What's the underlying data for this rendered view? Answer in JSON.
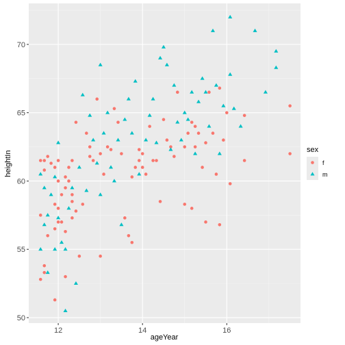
{
  "chart_data": {
    "type": "scatter",
    "xlabel": "ageYear",
    "ylabel": "heightIn",
    "xlim": [
      11.3,
      17.75
    ],
    "ylim": [
      49.6,
      73.0
    ],
    "x_ticks": [
      12,
      14,
      16
    ],
    "x_tick_labels": [
      "12",
      "14",
      "16"
    ],
    "y_ticks": [
      50,
      55,
      60,
      65,
      70
    ],
    "y_tick_labels": [
      "50",
      "55",
      "60",
      "65",
      "70"
    ],
    "grid": true,
    "legend": {
      "title": "sex",
      "position": "right",
      "entries": [
        {
          "label": "f",
          "color": "#F8766D",
          "shape": "circle"
        },
        {
          "label": "m",
          "color": "#00BFC4",
          "shape": "triangle"
        }
      ]
    },
    "series": [
      {
        "name": "f",
        "color": "#F8766D",
        "shape": "circle",
        "points": [
          [
            11.58,
            57.5
          ],
          [
            11.58,
            61.5
          ],
          [
            11.58,
            52.8
          ],
          [
            11.67,
            53.8
          ],
          [
            11.67,
            53.3
          ],
          [
            11.67,
            60.8
          ],
          [
            11.67,
            61.5
          ],
          [
            11.75,
            61.8
          ],
          [
            11.75,
            56.0
          ],
          [
            11.83,
            61.3
          ],
          [
            11.92,
            61.0
          ],
          [
            11.92,
            58.3
          ],
          [
            11.92,
            51.3
          ],
          [
            11.92,
            56.5
          ],
          [
            12.0,
            60.0
          ],
          [
            12.0,
            57.0
          ],
          [
            12.0,
            58.0
          ],
          [
            12.0,
            61.5
          ],
          [
            12.08,
            59.0
          ],
          [
            12.08,
            57.0
          ],
          [
            12.17,
            56.3
          ],
          [
            12.17,
            59.5
          ],
          [
            12.17,
            60.3
          ],
          [
            12.17,
            53.0
          ],
          [
            12.25,
            61.0
          ],
          [
            12.25,
            60.0
          ],
          [
            12.33,
            61.5
          ],
          [
            12.33,
            57.3
          ],
          [
            12.33,
            58.5
          ],
          [
            12.33,
            59.0
          ],
          [
            12.42,
            64.3
          ],
          [
            12.42,
            57.8
          ],
          [
            12.5,
            54.5
          ],
          [
            12.58,
            58.3
          ],
          [
            12.67,
            63.5
          ],
          [
            12.75,
            62.5
          ],
          [
            12.75,
            61.8
          ],
          [
            12.83,
            61.5
          ],
          [
            12.92,
            66.0
          ],
          [
            13.0,
            54.5
          ],
          [
            13.0,
            62.0
          ],
          [
            13.08,
            60.5
          ],
          [
            13.17,
            62.5
          ],
          [
            13.25,
            62.3
          ],
          [
            13.33,
            65.3
          ],
          [
            13.42,
            64.3
          ],
          [
            13.5,
            62.0
          ],
          [
            13.58,
            57.3
          ],
          [
            13.67,
            56.0
          ],
          [
            13.75,
            55.5
          ],
          [
            13.75,
            60.3
          ],
          [
            13.83,
            61.0
          ],
          [
            13.92,
            61.5
          ],
          [
            13.92,
            62.3
          ],
          [
            14.0,
            62.0
          ],
          [
            14.0,
            61.0
          ],
          [
            14.08,
            60.5
          ],
          [
            14.17,
            64.0
          ],
          [
            14.25,
            61.5
          ],
          [
            14.33,
            61.5
          ],
          [
            14.42,
            58.5
          ],
          [
            14.5,
            64.5
          ],
          [
            14.58,
            63.0
          ],
          [
            14.67,
            62.5
          ],
          [
            14.75,
            61.8
          ],
          [
            14.83,
            66.5
          ],
          [
            15.0,
            62.5
          ],
          [
            15.0,
            58.3
          ],
          [
            15.08,
            63.5
          ],
          [
            15.17,
            64.3
          ],
          [
            15.17,
            58.0
          ],
          [
            15.25,
            64.0
          ],
          [
            15.25,
            62.5
          ],
          [
            15.33,
            63.5
          ],
          [
            15.42,
            61.0
          ],
          [
            15.5,
            62.8
          ],
          [
            15.5,
            57.0
          ],
          [
            15.58,
            66.5
          ],
          [
            15.67,
            63.5
          ],
          [
            15.75,
            60.5
          ],
          [
            15.83,
            66.8
          ],
          [
            15.83,
            56.8
          ],
          [
            15.92,
            63.0
          ],
          [
            16.0,
            65.0
          ],
          [
            16.08,
            59.8
          ],
          [
            16.42,
            64.8
          ],
          [
            16.42,
            61.5
          ],
          [
            17.5,
            65.5
          ],
          [
            17.5,
            62.0
          ]
        ]
      },
      {
        "name": "m",
        "color": "#00BFC4",
        "shape": "triangle",
        "points": [
          [
            11.58,
            55.0
          ],
          [
            11.58,
            60.5
          ],
          [
            11.67,
            59.5
          ],
          [
            11.67,
            56.8
          ],
          [
            11.75,
            53.3
          ],
          [
            11.75,
            57.5
          ],
          [
            11.83,
            59.0
          ],
          [
            11.92,
            55.0
          ],
          [
            11.92,
            60.3
          ],
          [
            12.0,
            62.8
          ],
          [
            12.0,
            57.3
          ],
          [
            12.08,
            55.5
          ],
          [
            12.17,
            50.5
          ],
          [
            12.17,
            55.0
          ],
          [
            12.25,
            58.0
          ],
          [
            12.33,
            59.5
          ],
          [
            12.42,
            52.5
          ],
          [
            12.5,
            61.0
          ],
          [
            12.58,
            66.3
          ],
          [
            12.67,
            59.3
          ],
          [
            12.75,
            64.8
          ],
          [
            12.83,
            63.0
          ],
          [
            12.92,
            61.3
          ],
          [
            13.0,
            68.5
          ],
          [
            13.0,
            59.0
          ],
          [
            13.08,
            63.5
          ],
          [
            13.17,
            65.0
          ],
          [
            13.25,
            61.0
          ],
          [
            13.33,
            60.0
          ],
          [
            13.42,
            63.0
          ],
          [
            13.5,
            56.8
          ],
          [
            13.58,
            64.5
          ],
          [
            13.67,
            66.0
          ],
          [
            13.75,
            63.5
          ],
          [
            13.83,
            67.3
          ],
          [
            13.92,
            60.5
          ],
          [
            14.08,
            63.0
          ],
          [
            14.17,
            64.8
          ],
          [
            14.25,
            66.0
          ],
          [
            14.33,
            62.8
          ],
          [
            14.42,
            69.0
          ],
          [
            14.5,
            69.8
          ],
          [
            14.58,
            68.5
          ],
          [
            14.67,
            62.3
          ],
          [
            14.75,
            67.0
          ],
          [
            14.83,
            64.3
          ],
          [
            14.92,
            63.0
          ],
          [
            15.0,
            65.0
          ],
          [
            15.08,
            64.5
          ],
          [
            15.17,
            66.5
          ],
          [
            15.25,
            62.0
          ],
          [
            15.33,
            65.8
          ],
          [
            15.42,
            67.5
          ],
          [
            15.5,
            66.5
          ],
          [
            15.58,
            64.0
          ],
          [
            15.67,
            71.0
          ],
          [
            15.75,
            67.0
          ],
          [
            15.83,
            62.0
          ],
          [
            15.92,
            65.5
          ],
          [
            16.08,
            72.0
          ],
          [
            16.08,
            67.8
          ],
          [
            16.17,
            65.3
          ],
          [
            16.33,
            64.0
          ],
          [
            16.67,
            71.0
          ],
          [
            16.92,
            66.5
          ],
          [
            17.17,
            68.3
          ],
          [
            17.17,
            69.5
          ]
        ]
      }
    ]
  }
}
